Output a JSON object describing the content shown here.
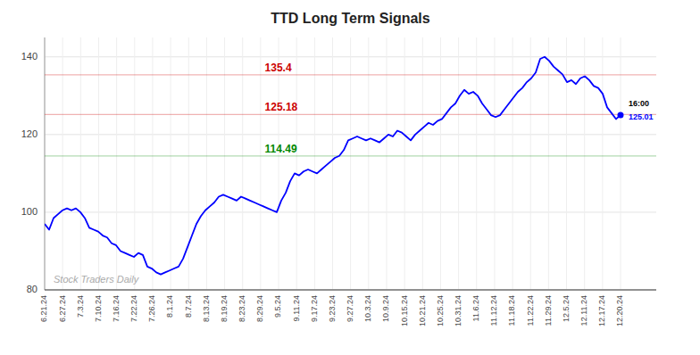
{
  "chart_data": {
    "type": "line",
    "title": "TTD Long Term Signals",
    "color": "blue",
    "grid": true,
    "xlim": [
      0,
      137
    ],
    "ylim": [
      80,
      145
    ],
    "yticks": [
      80,
      100,
      120,
      140
    ],
    "xticks": [
      {
        "value": 0,
        "label": "6.21.24"
      },
      {
        "value": 4.03125,
        "label": "6.27.24"
      },
      {
        "value": 8.0625,
        "label": "7.3.24"
      },
      {
        "value": 12.09375,
        "label": "7.10.24"
      },
      {
        "value": 16.125,
        "label": "7.16.24"
      },
      {
        "value": 20.15625,
        "label": "7.22.24"
      },
      {
        "value": 24.1875,
        "label": "7.26.24"
      },
      {
        "value": 28.21875,
        "label": "8.1.24"
      },
      {
        "value": 32.25,
        "label": "8.7.24"
      },
      {
        "value": 36.28125,
        "label": "8.13.24"
      },
      {
        "value": 40.3125,
        "label": "8.19.24"
      },
      {
        "value": 44.34375,
        "label": "8.23.24"
      },
      {
        "value": 48.375,
        "label": "8.29.24"
      },
      {
        "value": 52.40625,
        "label": "9.5.24"
      },
      {
        "value": 56.4375,
        "label": "9.11.24"
      },
      {
        "value": 60.46875,
        "label": "9.17.24"
      },
      {
        "value": 64.5,
        "label": "9.23.24"
      },
      {
        "value": 68.53125,
        "label": "9.27.24"
      },
      {
        "value": 72.5625,
        "label": "10.3.24"
      },
      {
        "value": 76.59375,
        "label": "10.9.24"
      },
      {
        "value": 80.625,
        "label": "10.15.24"
      },
      {
        "value": 84.65625,
        "label": "10.21.24"
      },
      {
        "value": 88.6875,
        "label": "10.25.24"
      },
      {
        "value": 92.71875,
        "label": "10.31.24"
      },
      {
        "value": 96.75,
        "label": "11.6.24"
      },
      {
        "value": 100.78125,
        "label": "11.12.24"
      },
      {
        "value": 104.8125,
        "label": "11.18.24"
      },
      {
        "value": 108.84375,
        "label": "11.22.24"
      },
      {
        "value": 112.875,
        "label": "11.29.24"
      },
      {
        "value": 116.90625,
        "label": "12.5.24"
      },
      {
        "value": 120.9375,
        "label": "12.11.24"
      },
      {
        "value": 124.96875,
        "label": "12.17.24"
      },
      {
        "value": 129,
        "label": "12.20.24"
      }
    ],
    "x": [
      0,
      1,
      2,
      3,
      4,
      5,
      6,
      7,
      8,
      9,
      10,
      11,
      12,
      13,
      14,
      15,
      16,
      17,
      18,
      19,
      20,
      21,
      22,
      23,
      24,
      25,
      26,
      27,
      28,
      29,
      30,
      31,
      32,
      33,
      34,
      35,
      36,
      37,
      38,
      39,
      40,
      41,
      42,
      43,
      44,
      45,
      46,
      47,
      48,
      49,
      50,
      51,
      52,
      53,
      54,
      55,
      56,
      57,
      58,
      59,
      60,
      61,
      62,
      63,
      64,
      65,
      66,
      67,
      68,
      69,
      70,
      71,
      72,
      73,
      74,
      75,
      76,
      77,
      78,
      79,
      80,
      81,
      82,
      83,
      84,
      85,
      86,
      87,
      88,
      89,
      90,
      91,
      92,
      93,
      94,
      95,
      96,
      97,
      98,
      99,
      100,
      101,
      102,
      103,
      104,
      105,
      106,
      107,
      108,
      109,
      110,
      111,
      112,
      113,
      114,
      115,
      116,
      117,
      118,
      119,
      120,
      121,
      122,
      123,
      124,
      125,
      126,
      127,
      128,
      129
    ],
    "values": [
      97.0,
      95.5,
      98.5,
      99.5,
      100.5,
      101.0,
      100.5,
      101.0,
      100.0,
      98.5,
      96.0,
      95.5,
      95.0,
      94.0,
      93.5,
      92.0,
      91.5,
      90.0,
      89.5,
      89.0,
      88.5,
      89.5,
      89.0,
      86.0,
      85.5,
      84.5,
      84.0,
      84.5,
      85.0,
      85.5,
      86.0,
      88.0,
      91.0,
      94.0,
      97.0,
      99.0,
      100.5,
      101.5,
      102.5,
      104.0,
      104.5,
      104.0,
      103.5,
      103.0,
      104.0,
      103.5,
      103.0,
      102.5,
      102.0,
      101.5,
      101.0,
      100.5,
      100.0,
      103.0,
      105.0,
      108.0,
      110.0,
      109.5,
      110.5,
      111.0,
      110.5,
      110.0,
      111.0,
      112.0,
      113.0,
      114.0,
      114.5,
      116.0,
      118.5,
      119.0,
      119.5,
      119.0,
      118.5,
      119.0,
      118.5,
      118.0,
      119.0,
      120.0,
      119.5,
      121.0,
      120.5,
      119.5,
      118.5,
      120.0,
      121.0,
      122.0,
      123.0,
      122.5,
      123.5,
      124.0,
      125.5,
      127.0,
      128.0,
      130.0,
      131.5,
      130.5,
      131.0,
      130.0,
      128.0,
      126.5,
      125.0,
      124.5,
      125.0,
      126.5,
      128.0,
      129.5,
      131.0,
      132.0,
      133.5,
      134.5,
      136.0,
      139.5,
      140.0,
      139.0,
      137.5,
      136.5,
      135.5,
      133.5,
      134.0,
      133.0,
      134.5,
      135.0,
      134.0,
      132.5,
      132.0,
      130.5,
      127.0,
      125.5,
      124.0,
      125.01
    ],
    "reference_lines": [
      {
        "value": 135.4,
        "label": "135.4",
        "color": "#cc0000"
      },
      {
        "value": 125.18,
        "label": "125.18",
        "color": "#cc0000"
      },
      {
        "value": 114.49,
        "label": "114.49",
        "color": "#008800"
      }
    ],
    "end_label": "16:00",
    "watermark": "Stock Traders Daily"
  }
}
